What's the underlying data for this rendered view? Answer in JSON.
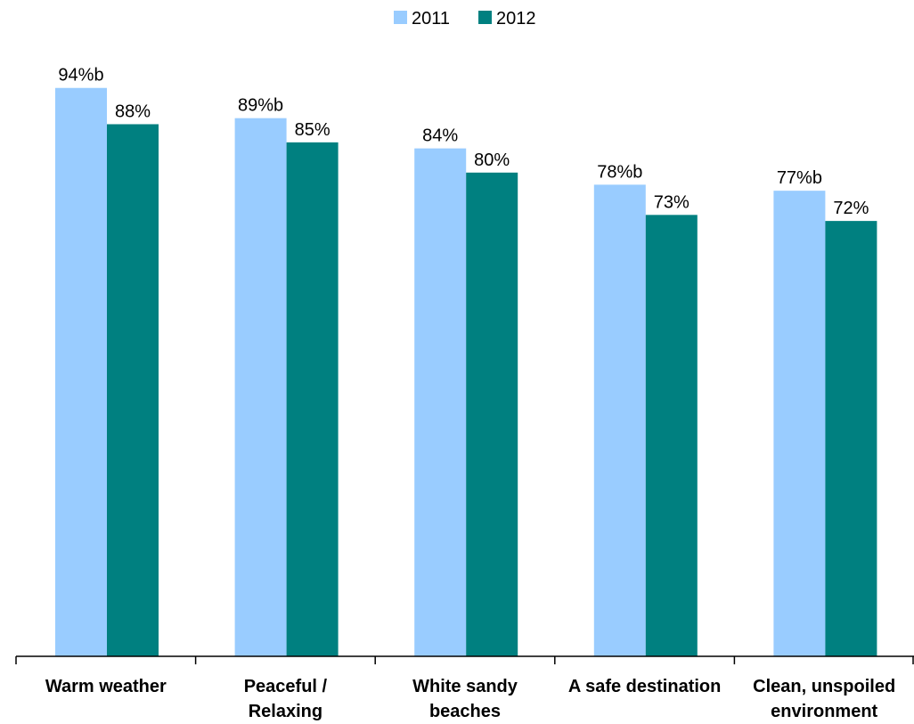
{
  "chart_data": {
    "type": "bar",
    "title": "",
    "xlabel": "",
    "ylabel": "",
    "ylim": [
      0,
      100
    ],
    "grid": false,
    "legend_position": "top-center",
    "categories": [
      [
        "Warm weather"
      ],
      [
        "Peaceful /",
        "Relaxing"
      ],
      [
        "White sandy",
        "beaches"
      ],
      [
        "A safe destination"
      ],
      [
        "Clean, unspoiled",
        "environment"
      ]
    ],
    "series": [
      {
        "name": "2011",
        "color": "#99CCFF",
        "values": [
          94,
          89,
          84,
          78,
          77
        ],
        "labels": [
          "94%b",
          "89%b",
          "84%",
          "78%b",
          "77%b"
        ]
      },
      {
        "name": "2012",
        "color": "#008080",
        "values": [
          88,
          85,
          80,
          73,
          72
        ],
        "labels": [
          "88%",
          "85%",
          "80%",
          "73%",
          "72%"
        ]
      }
    ]
  }
}
